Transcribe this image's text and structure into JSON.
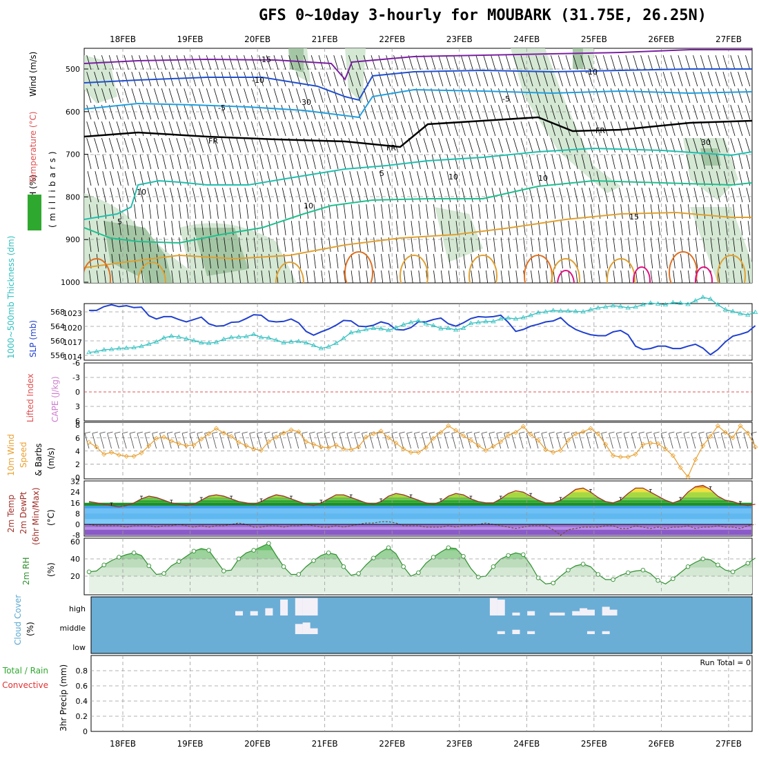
{
  "title": "GFS 0~10day 3-hourly for MOUBARK (31.75E, 26.25N)",
  "dates": [
    "18FEB",
    "19FEB",
    "20FEB",
    "21FEB",
    "22FEB",
    "23FEB",
    "24FEB",
    "25FEB",
    "26FEB",
    "27FEB"
  ],
  "colors": {
    "rh_fill": "#cfe5cf",
    "rh_dark": "#9fc29f",
    "slp": "#1f3fcf",
    "thickness": "#2fbfbf",
    "wind": "#e8a030",
    "lifted_zero": "#e05050",
    "temp_line": "#a0302a",
    "rh2m": "#2f8f2f",
    "cloud_bg": "#6aaed6",
    "cloud_fill": "#f4f0f8",
    "iso_neg15": "#7b1fa2",
    "iso_neg10": "#1f4fcf",
    "iso_neg5": "#1f9fe0",
    "iso_fr": "#000000",
    "iso_5": "#1fbfaf",
    "iso_10": "#1fbf8f",
    "iso_15": "#e0a030",
    "iso_20": "#e07020",
    "iso_25": "#e01080"
  },
  "panels": {
    "upper": {
      "ylabel_rh": "RH (%)",
      "ylabel_temp": "Temperature (°C)",
      "ylabel_wind": "Wind (m/s)",
      "ylabel_mb": "(millibars)",
      "isotherm_labels": [
        "-15",
        "-10",
        "-10",
        "-5",
        "-5",
        "FR",
        "FR",
        "FR",
        "5",
        "5",
        "10",
        "10",
        "10",
        "15",
        "30",
        "30",
        "10"
      ],
      "levels": [
        500,
        600,
        700,
        800,
        900,
        1000
      ]
    },
    "slp": {
      "ylabel_left": "1000~500mb Thickness (dm)",
      "ylabel_right": "SLP (mb)",
      "ticks_dm": [
        "568",
        "564",
        "560",
        "556"
      ],
      "ticks_mb": [
        "1023",
        "1020",
        "1017",
        "1014"
      ]
    },
    "lifted": {
      "ylabel_left": "Lifted Index",
      "ylabel_right": "CAPE (J/kg)",
      "ticks": [
        "-6",
        "-3",
        "0",
        "3",
        "6"
      ]
    },
    "wind10": {
      "ylabel_1": "10m Wind",
      "ylabel_2": "Speed",
      "ylabel_3": "& Barbs",
      "ylabel_4": "(m/s)",
      "ticks": [
        "8",
        "6",
        "4",
        "2",
        "0"
      ]
    },
    "temp2m": {
      "ylabel_1": "2m Temp",
      "ylabel_2": "2m DewPt",
      "ylabel_3": "(6hr Min/Max)",
      "ylabel_4": "(°C)",
      "ticks": [
        "32",
        "24",
        "16",
        "8",
        "0",
        "-8"
      ]
    },
    "rh2m": {
      "ylabel_1": "2m RH",
      "ylabel_2": "(%)",
      "ticks": [
        "60",
        "40",
        "20"
      ]
    },
    "cloud": {
      "ylabel_1": "Cloud Cover",
      "ylabel_2": "(%)",
      "levels": [
        "high",
        "middle",
        "low"
      ]
    },
    "precip": {
      "ylabel_1": "Total / Rain",
      "ylabel_2": "Convective",
      "ylabel_3": "3hr Precip (mm)",
      "run_total": "Run Total = 0",
      "ticks": [
        "0.8",
        "0.6",
        "0.4",
        "0.2",
        "0"
      ]
    }
  },
  "chart_data": [
    {
      "type": "line",
      "name": "slp_thickness",
      "x_unit": "3-hourly steps from 17FEB 12Z",
      "series": [
        {
          "name": "SLP (mb)",
          "values": [
            1022.8,
            1022.8,
            1023.6,
            1024.0,
            1023.6,
            1023.8,
            1023.4,
            1023.5,
            1021.7,
            1021.0,
            1021.5,
            1021.5,
            1020.9,
            1020.4,
            1020.9,
            1021.4,
            1020.0,
            1019.5,
            1019.6,
            1020.3,
            1020.4,
            1021.1,
            1021.9,
            1021.8,
            1020.6,
            1020.4,
            1020.5,
            1021.0,
            1020.2,
            1018.4,
            1017.6,
            1018.3,
            1018.9,
            1019.7,
            1020.7,
            1020.6,
            1019.5,
            1019.4,
            1019.7,
            1020.4,
            1020.0,
            1018.8,
            1018.7,
            1019.2,
            1020.4,
            1020.4,
            1020.9,
            1021.2,
            1020.0,
            1019.5,
            1020.2,
            1021.1,
            1021.5,
            1021.4,
            1021.5,
            1021.8,
            1020.3,
            1018.4,
            1018.8,
            1019.5,
            1019.9,
            1020.4,
            1020.6,
            1021.3,
            1019.8,
            1018.8,
            1018.2,
            1017.7,
            1017.5,
            1017.5,
            1018.3,
            1018.6,
            1017.7,
            1015.3,
            1014.6,
            1014.8,
            1015.3,
            1015.3,
            1014.8,
            1014.8,
            1015.3,
            1015.7,
            1014.9,
            1013.5,
            1014.6,
            1016.2,
            1017.4,
            1017.8,
            1018.3,
            1019.6
          ]
        },
        {
          "name": "Thickness (dm)",
          "values": [
            556.1,
            556.3,
            556.7,
            556.8,
            557.0,
            557.1,
            557.2,
            557.5,
            558.0,
            558.5,
            559.4,
            559.8,
            559.6,
            559.2,
            558.8,
            558.3,
            558.2,
            558.4,
            559.1,
            559.5,
            559.6,
            559.7,
            560.2,
            559.5,
            559.4,
            558.9,
            558.3,
            558.5,
            558.6,
            558.3,
            557.7,
            557.0,
            557.4,
            558.2,
            559.3,
            560.6,
            560.9,
            561.3,
            561.6,
            561.5,
            561.1,
            561.7,
            562.4,
            562.9,
            563.3,
            562.6,
            562.2,
            561.5,
            561.6,
            561.2,
            561.6,
            562.7,
            562.9,
            563.1,
            563.1,
            563.7,
            563.9,
            563.7,
            564.0,
            564.5,
            565.1,
            565.3,
            565.6,
            565.5,
            565.5,
            565.4,
            565.3,
            565.8,
            566.2,
            566.4,
            566.7,
            566.5,
            566.2,
            566.4,
            566.9,
            567.3,
            567.1,
            566.9,
            567.4,
            567.3,
            567.0,
            567.8,
            568.6,
            568.2,
            566.9,
            565.8,
            565.4,
            564.9,
            564.6,
            565.2
          ]
        }
      ]
    },
    {
      "type": "line",
      "name": "wind10m",
      "ylim": [
        0,
        8
      ],
      "series": [
        {
          "name": "10m Wind Speed",
          "values": [
            5.3,
            4.6,
            3.5,
            3.8,
            3.4,
            3.2,
            3.2,
            3.7,
            4.8,
            5.9,
            6.1,
            5.5,
            5.1,
            4.8,
            4.9,
            5.8,
            6.6,
            7.4,
            6.7,
            6.2,
            5.3,
            4.8,
            4.3,
            4.1,
            5.4,
            6.1,
            6.7,
            7.2,
            6.9,
            5.4,
            5.0,
            4.6,
            4.5,
            4.9,
            4.3,
            4.2,
            4.6,
            6.1,
            6.6,
            7.0,
            6.0,
            5.2,
            4.3,
            3.8,
            3.8,
            4.5,
            5.9,
            6.8,
            7.8,
            7.1,
            6.3,
            5.6,
            4.8,
            4.1,
            4.7,
            5.4,
            6.4,
            6.8,
            7.7,
            6.5,
            5.6,
            4.2,
            3.8,
            4.1,
            5.6,
            6.6,
            6.9,
            7.4,
            6.6,
            5.0,
            3.3,
            3.1,
            3.1,
            3.5,
            5.0,
            5.2,
            5.1,
            4.3,
            3.3,
            1.5,
            0.1,
            2.7,
            4.8,
            6.2,
            7.8,
            6.8,
            6.0,
            7.8,
            6.7,
            4.6
          ]
        }
      ]
    },
    {
      "type": "area",
      "name": "temp2m",
      "ylim": [
        -8,
        32
      ],
      "series": [
        {
          "name": "2m Temp",
          "values": [
            17,
            16,
            15,
            14,
            13,
            14,
            16,
            19,
            21,
            20,
            18,
            16,
            15,
            14,
            15,
            18,
            21,
            22,
            21,
            19,
            17,
            16,
            15,
            17,
            20,
            22,
            21,
            19,
            17,
            15,
            14,
            16,
            19,
            22,
            22,
            20,
            18,
            16,
            15,
            17,
            21,
            23,
            22,
            20,
            18,
            16,
            15,
            17,
            21,
            23,
            22,
            19,
            17,
            16,
            16,
            19,
            23,
            25,
            24,
            21,
            18,
            16,
            16,
            18,
            22,
            26,
            27,
            24,
            20,
            17,
            16,
            18,
            23,
            27,
            27,
            24,
            21,
            18,
            16,
            18,
            24,
            28,
            29,
            26,
            21,
            18,
            17,
            15,
            14,
            15
          ]
        },
        {
          "name": "2m DewPt",
          "values": [
            0,
            -1,
            -1,
            -1,
            -1,
            -2,
            -1,
            -1,
            -1,
            -2,
            -1,
            -1,
            0,
            -1,
            -2,
            -1,
            -2,
            -1,
            -1,
            0,
            1,
            0,
            -2,
            -2,
            -1,
            -1,
            -2,
            -1,
            -1,
            0,
            -1,
            -2,
            -2,
            -1,
            -2,
            -1,
            0,
            1,
            1,
            2,
            2,
            1,
            -1,
            -1,
            -1,
            -2,
            -2,
            -2,
            -1,
            -2,
            -1,
            -1,
            0,
            1,
            0,
            -1,
            -2,
            -3,
            -2,
            -1,
            -1,
            -1,
            -4,
            -8,
            -4,
            -3,
            -2,
            -2,
            -2,
            -1,
            -1,
            -3,
            -3,
            -1,
            -2,
            -3,
            -2,
            -3,
            -2,
            -2,
            -1,
            -3,
            -2,
            -2,
            -1,
            -2,
            -2,
            -3,
            -1,
            0
          ]
        }
      ]
    },
    {
      "type": "area",
      "name": "rh2m",
      "ylim": [
        0,
        60
      ],
      "series": [
        {
          "name": "2m RH",
          "values": [
            25,
            26,
            33,
            38,
            42,
            45,
            47,
            44,
            32,
            22,
            23,
            32,
            37,
            43,
            49,
            52,
            50,
            38,
            26,
            27,
            40,
            47,
            50,
            54,
            58,
            44,
            31,
            22,
            22,
            31,
            38,
            44,
            47,
            45,
            31,
            21,
            23,
            33,
            41,
            48,
            53,
            46,
            31,
            20,
            24,
            35,
            42,
            48,
            53,
            52,
            43,
            29,
            19,
            20,
            31,
            40,
            44,
            47,
            45,
            33,
            18,
            11,
            12,
            20,
            27,
            32,
            34,
            31,
            22,
            16,
            16,
            21,
            24,
            26,
            27,
            23,
            15,
            11,
            17,
            24,
            31,
            36,
            40,
            39,
            33,
            27,
            25,
            30,
            35,
            41
          ]
        }
      ]
    },
    {
      "type": "table",
      "name": "cloud_cover_pct",
      "columns": [
        "step",
        "high",
        "middle",
        "low"
      ],
      "rows": [
        [
          20,
          15,
          0,
          0
        ],
        [
          22,
          15,
          0,
          0
        ],
        [
          24,
          25,
          0,
          0
        ],
        [
          26,
          55,
          0,
          0
        ],
        [
          28,
          60,
          35,
          10
        ],
        [
          29,
          60,
          40,
          15
        ],
        [
          30,
          60,
          20,
          10
        ],
        [
          54,
          60,
          0,
          0
        ],
        [
          55,
          55,
          10,
          10
        ],
        [
          57,
          10,
          15,
          10
        ],
        [
          59,
          15,
          10,
          10
        ],
        [
          62,
          10,
          0,
          0
        ],
        [
          63,
          10,
          0,
          0
        ],
        [
          65,
          15,
          0,
          0
        ],
        [
          66,
          25,
          0,
          0
        ],
        [
          67,
          20,
          10,
          10
        ],
        [
          69,
          30,
          10,
          10
        ],
        [
          70,
          20,
          0,
          0
        ]
      ]
    },
    {
      "type": "bar",
      "name": "precip_3hr",
      "ylim": [
        0,
        1
      ],
      "values": []
    }
  ]
}
